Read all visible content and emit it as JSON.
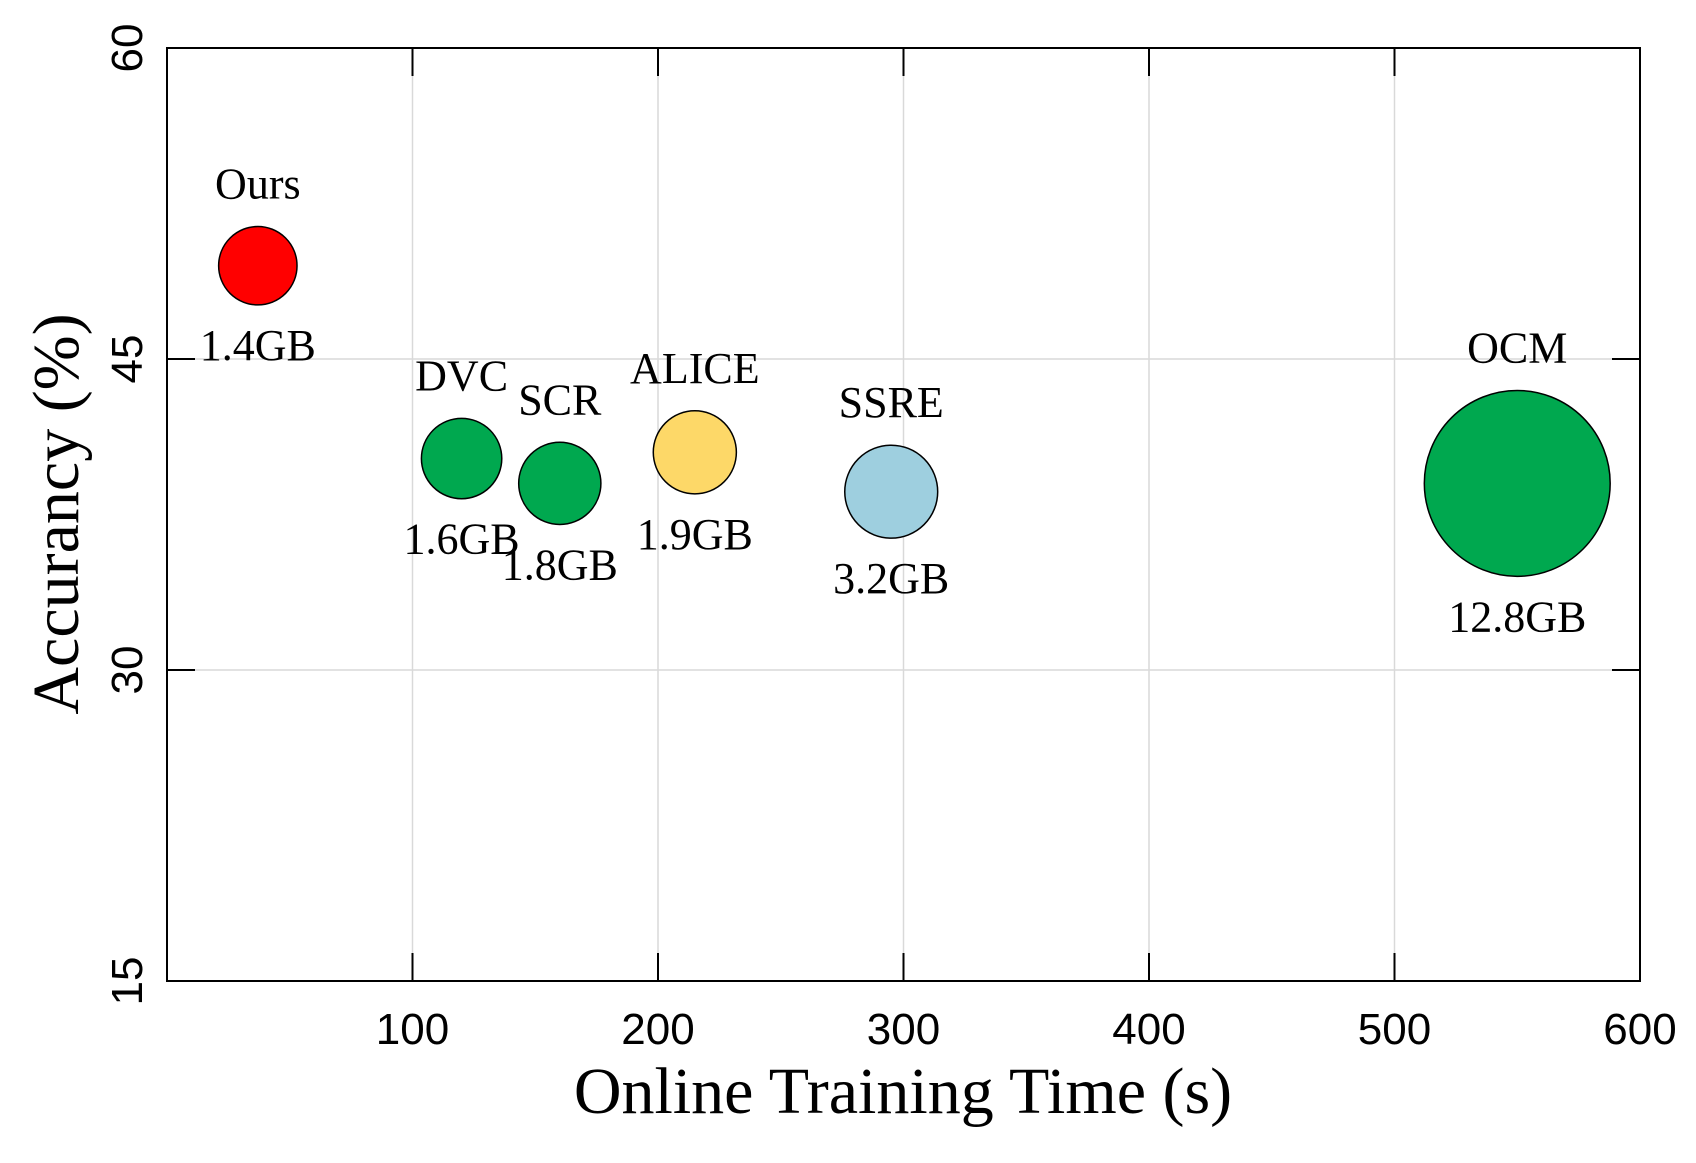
{
  "chart_data": {
    "type": "scatter",
    "xlabel": "Online Training Time (s)",
    "ylabel": "Accurancy (%)",
    "xlim": [
      0,
      600
    ],
    "ylim": [
      15,
      60
    ],
    "xticks": [
      100,
      200,
      300,
      400,
      500,
      600
    ],
    "yticks": [
      15,
      30,
      45,
      60
    ],
    "grid": true,
    "points": [
      {
        "name": "Ours",
        "x": 37,
        "y": 49.5,
        "size": "1.4GB",
        "size_gb": 1.4,
        "color": "#ff0000"
      },
      {
        "name": "DVC",
        "x": 120,
        "y": 40.2,
        "size": "1.6GB",
        "size_gb": 1.6,
        "color": "#00a84f"
      },
      {
        "name": "SCR",
        "x": 160,
        "y": 39.0,
        "size": "1.8GB",
        "size_gb": 1.8,
        "color": "#00a84f"
      },
      {
        "name": "ALICE",
        "x": 215,
        "y": 40.5,
        "size": "1.9GB",
        "size_gb": 1.9,
        "color": "#fdd868"
      },
      {
        "name": "SSRE",
        "x": 295,
        "y": 38.6,
        "size": "3.2GB",
        "size_gb": 3.2,
        "color": "#9ecfdf"
      },
      {
        "name": "OCM",
        "x": 550,
        "y": 39.0,
        "size": "12.8GB",
        "size_gb": 12.8,
        "color": "#00a84f"
      }
    ]
  }
}
